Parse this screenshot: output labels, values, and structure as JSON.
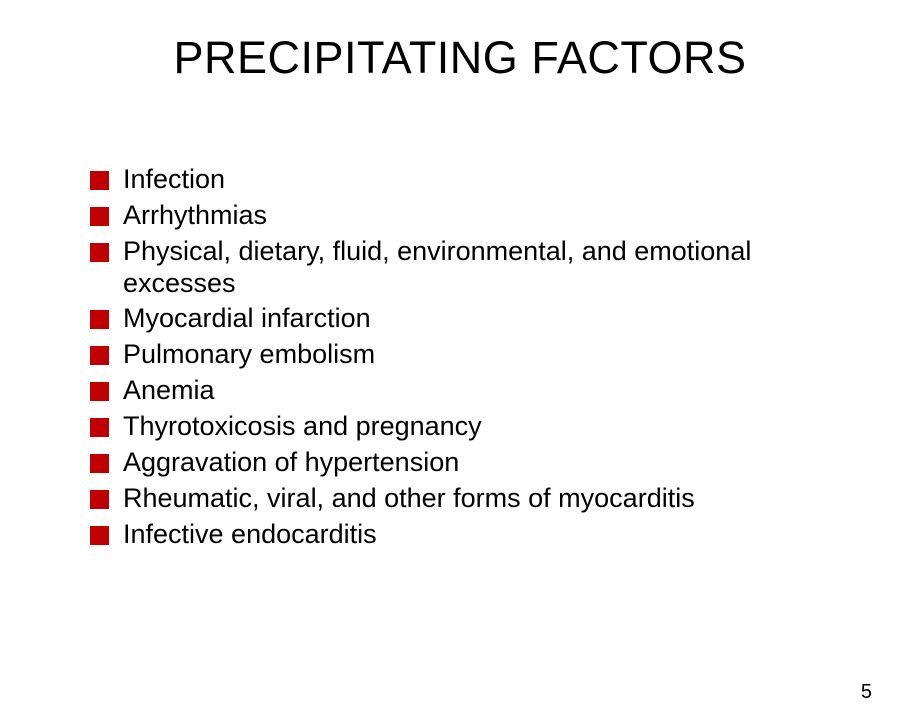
{
  "slide": {
    "title": "PRECIPITATING FACTORS",
    "bullets": [
      "Infection",
      "Arrhythmias",
      "Physical, dietary, fluid, environmental, and emotional excesses",
      "Myocardial infarction",
      "Pulmonary embolism",
      "Anemia",
      "Thyrotoxicosis and  pregnancy",
      "Aggravation of hypertension",
      "Rheumatic, viral, and other forms of myocarditis",
      "Infective  endocarditis"
    ],
    "pageNumber": "5",
    "colors": {
      "background": "#ffffff",
      "text": "#000000",
      "bulletMarker": "#c00000"
    },
    "typography": {
      "titleFontSize": 45,
      "bulletFontSize": 27,
      "pageNumberFontSize": 20,
      "fontFamily": "Arial"
    }
  }
}
